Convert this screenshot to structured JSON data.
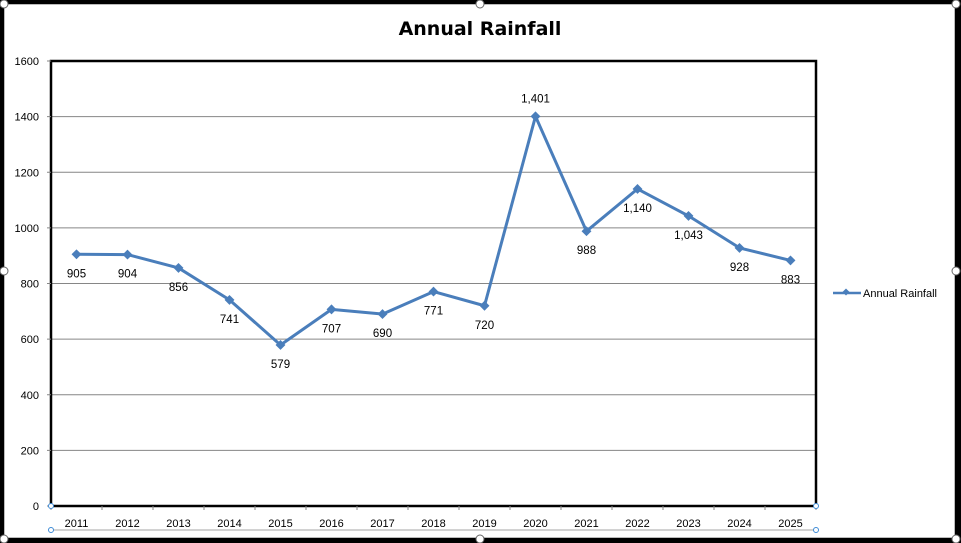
{
  "chart_data": {
    "type": "line",
    "title": "Annual Rainfall",
    "xlabel": "",
    "ylabel": "",
    "categories": [
      "2011",
      "2012",
      "2013",
      "2014",
      "2015",
      "2016",
      "2017",
      "2018",
      "2019",
      "2020",
      "2021",
      "2022",
      "2023",
      "2024",
      "2025"
    ],
    "series": [
      {
        "name": "Annual Rainfall",
        "color": "#4a7ebb",
        "values": [
          905,
          904,
          856,
          741,
          579,
          707,
          690,
          771,
          720,
          1401,
          988,
          1140,
          1043,
          928,
          883
        ],
        "labels": [
          "905",
          "904",
          "856",
          "741",
          "579",
          "707",
          "690",
          "771",
          "720",
          "1,401",
          "988",
          "1,140",
          "1,043",
          "928",
          "883"
        ],
        "label_position": [
          "below",
          "below",
          "below",
          "below",
          "below",
          "below",
          "below",
          "below",
          "below",
          "above",
          "below",
          "below",
          "below",
          "below",
          "below"
        ]
      }
    ],
    "ylim": [
      0,
      1600
    ],
    "yticks": [
      0,
      200,
      400,
      600,
      800,
      1000,
      1200,
      1400,
      1600
    ],
    "ytick_labels": [
      "0",
      "200",
      "400",
      "600",
      "800",
      "1000",
      "1200",
      "1400",
      "1600"
    ],
    "grid": true,
    "legend": {
      "placement": "right",
      "entries": [
        "Annual Rainfall"
      ]
    }
  }
}
